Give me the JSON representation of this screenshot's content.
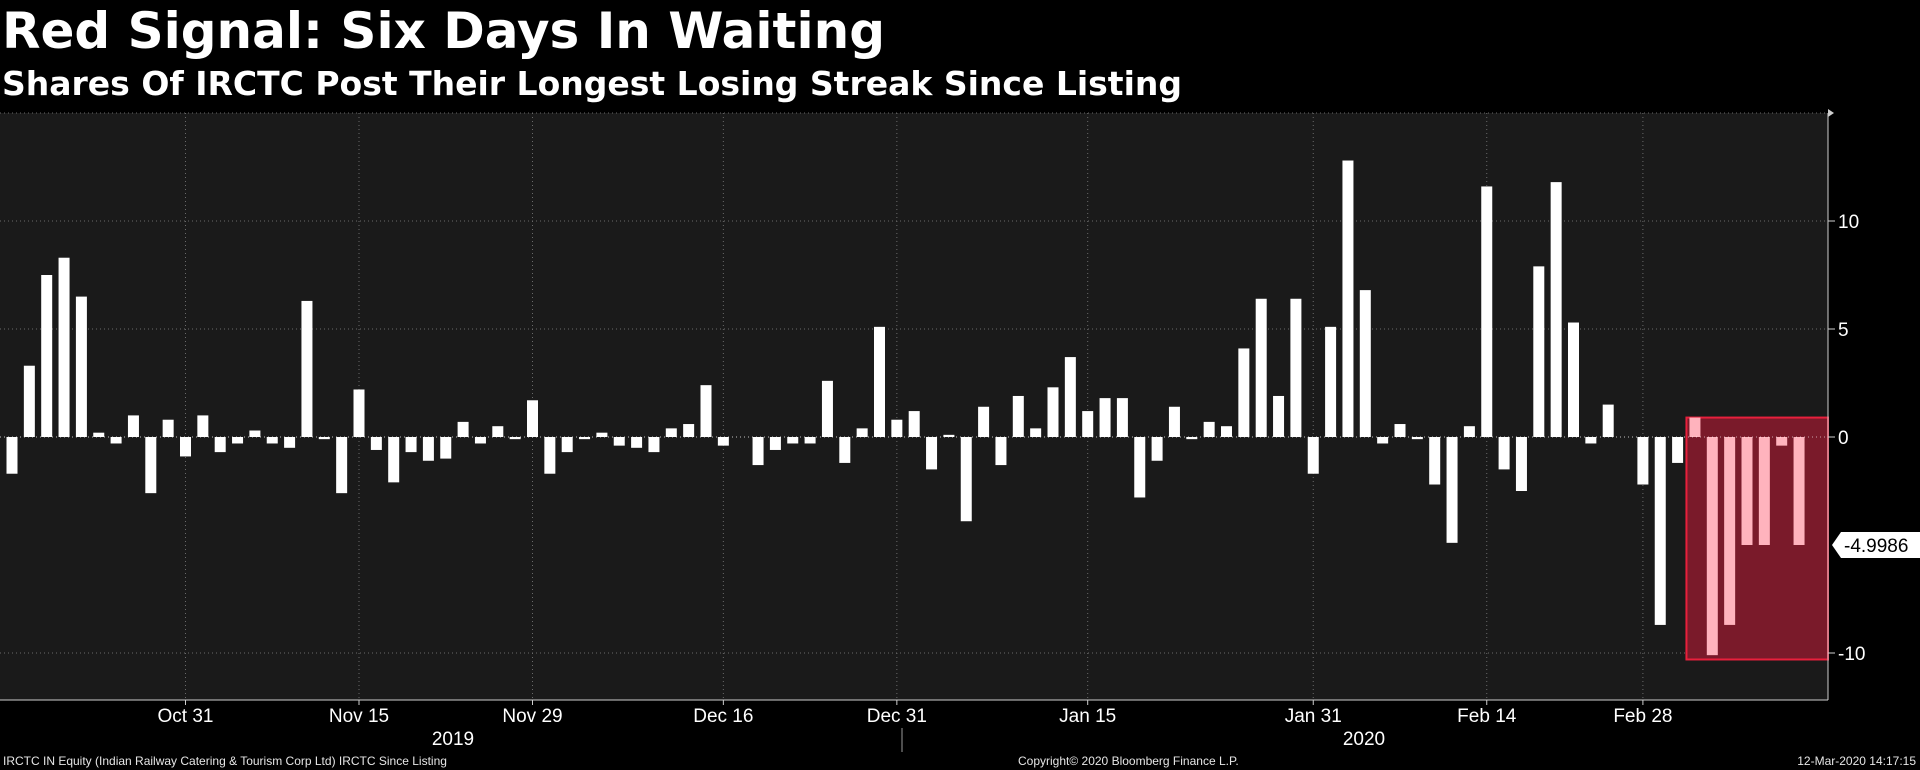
{
  "header": {
    "title": "Red Signal: Six Days In Waiting",
    "subtitle": "Shares Of IRCTC Post Their Longest Losing Streak Since Listing"
  },
  "footer": {
    "source": "IRCTC IN Equity (Indian Railway Catering & Tourism Corp Ltd) IRCTC Since Listing",
    "copyright": "Copyright© 2020 Bloomberg Finance L.P.",
    "timestamp": "12-Mar-2020 14:17:15"
  },
  "colors": {
    "background": "#000000",
    "plot_background": "#1a1a1a",
    "bar": "#ffffff",
    "highlight_fill": "#7a1a2a",
    "highlight_border": "#e8203c",
    "highlight_bar": "#ffb3bd"
  },
  "chart_data": {
    "type": "bar",
    "title": "Red Signal: Six Days In Waiting",
    "subtitle": "Shares Of IRCTC Post Their Longest Losing Streak Since Listing",
    "ylim": [
      -12,
      14.5
    ],
    "yticks": [
      10,
      5,
      0,
      -10
    ],
    "ytick_labels": [
      "10",
      "5",
      "0",
      "-10"
    ],
    "y_axis_side": "right",
    "grid": true,
    "last_value_label": "-4.9986",
    "last_value": -4.9986,
    "x_tick_labels": [
      "Oct 31",
      "Nov 15",
      "Nov 29",
      "Dec 16",
      "Dec 31",
      "Jan 15",
      "Jan 31",
      "Feb 14",
      "Feb 28"
    ],
    "x_tick_bar_index": [
      10,
      20,
      30,
      41,
      51,
      62,
      75,
      85,
      94
    ],
    "year_labels": [
      "2019",
      "2020"
    ],
    "values": [
      -1.7,
      3.3,
      7.5,
      8.3,
      6.5,
      0.2,
      -0.3,
      1.0,
      -2.6,
      0.8,
      -0.9,
      1.0,
      -0.7,
      -0.3,
      0.3,
      -0.3,
      -0.5,
      6.3,
      -0.1,
      -2.6,
      2.2,
      -0.6,
      -2.1,
      -0.7,
      -1.1,
      -1.0,
      0.7,
      -0.3,
      0.5,
      -0.1,
      1.7,
      -1.7,
      -0.7,
      -0.1,
      0.2,
      -0.4,
      -0.5,
      -0.7,
      0.4,
      0.6,
      2.4,
      -0.4,
      0.0,
      -1.3,
      -0.6,
      -0.3,
      -0.3,
      2.6,
      -1.2,
      0.4,
      5.1,
      0.8,
      1.2,
      -1.5,
      0.1,
      -3.9,
      1.4,
      -1.3,
      1.9,
      0.4,
      2.3,
      3.7,
      1.2,
      1.8,
      1.8,
      -2.8,
      -1.1,
      1.4,
      -0.1,
      0.7,
      0.5,
      4.1,
      6.4,
      1.9,
      6.4,
      -1.7,
      5.1,
      12.8,
      6.8,
      -0.3,
      0.6,
      -0.1,
      -2.2,
      -4.9,
      0.5,
      11.6,
      -1.5,
      -2.5,
      7.9,
      11.8,
      5.3,
      -0.3,
      1.5,
      0.0,
      -2.2,
      -8.7,
      -1.2,
      0.9,
      -10.1,
      -8.7,
      -5.0,
      -5.0,
      -0.4,
      -5.0
    ],
    "highlight_range": [
      97,
      103
    ],
    "highlight_ylim": [
      -10.3,
      0.9
    ]
  }
}
